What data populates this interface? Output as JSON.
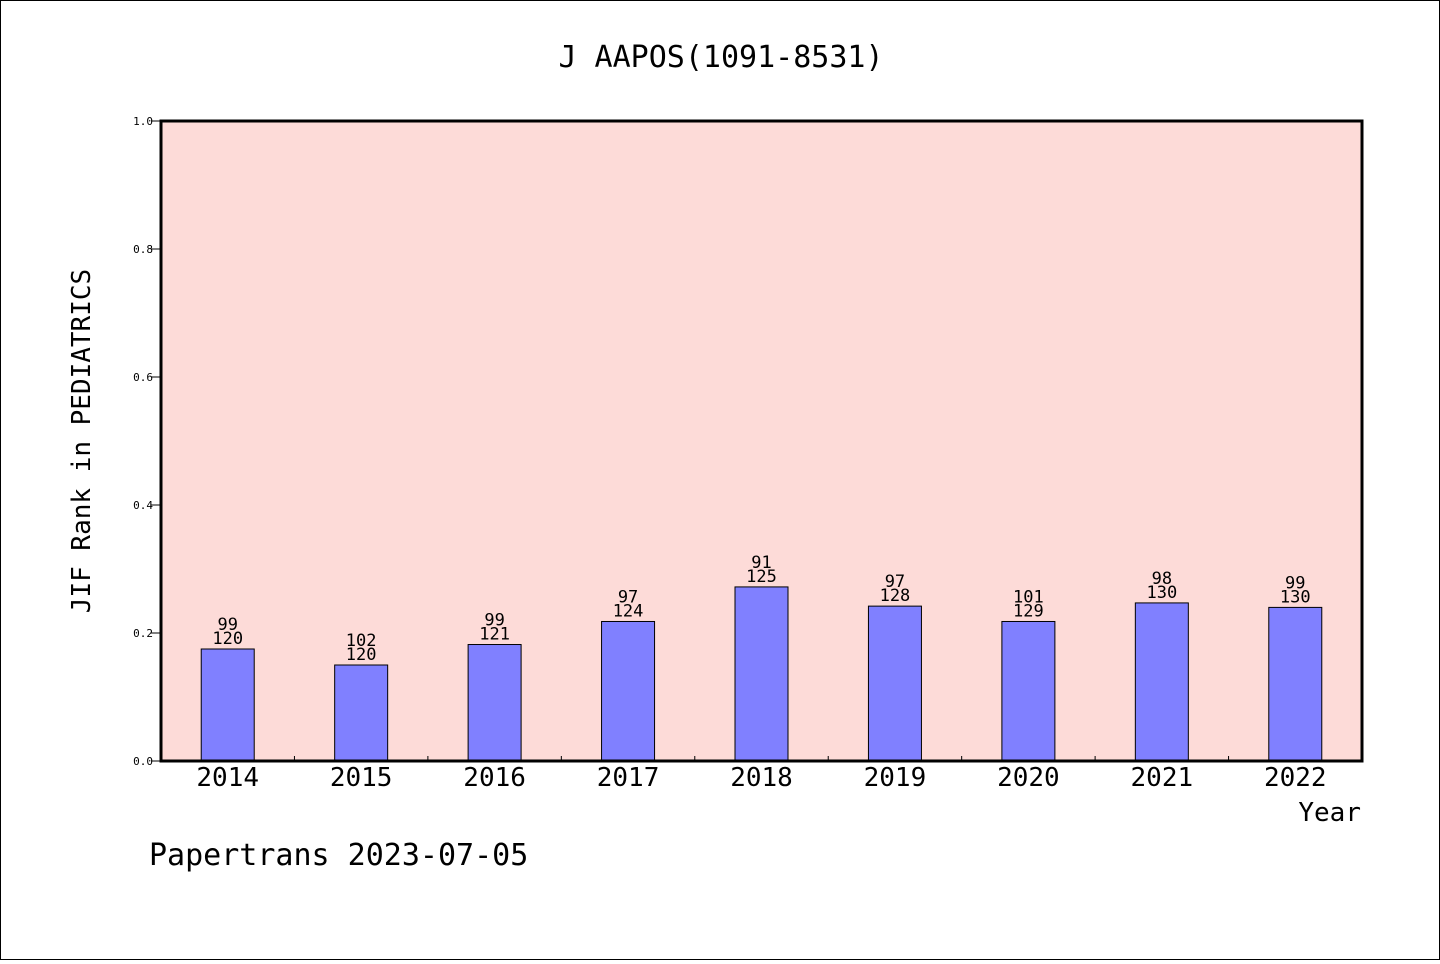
{
  "chart_data": {
    "type": "bar",
    "title": "J AAPOS(1091-8531)",
    "xlabel": "Year",
    "ylabel": "JIF Rank in PEDIATRICS",
    "ylim": [
      0,
      1.0
    ],
    "yticks": [
      "0.0",
      "0.2",
      "0.4",
      "0.6",
      "0.8",
      "1.0"
    ],
    "categories": [
      "2014",
      "2015",
      "2016",
      "2017",
      "2018",
      "2019",
      "2020",
      "2021",
      "2022"
    ],
    "values": [
      0.175,
      0.15,
      0.182,
      0.218,
      0.272,
      0.242,
      0.218,
      0.247,
      0.24
    ],
    "ranks": [
      "99",
      "102",
      "99",
      "97",
      "91",
      "97",
      "101",
      "98",
      "99"
    ],
    "totals": [
      "120",
      "120",
      "121",
      "124",
      "125",
      "128",
      "129",
      "130",
      "130"
    ],
    "grid": false,
    "colors": {
      "plot_bg": "#fddbd8",
      "bar": "#8080ff",
      "axis": "#000000"
    }
  },
  "footer": {
    "text": "Papertrans 2023-07-05"
  }
}
